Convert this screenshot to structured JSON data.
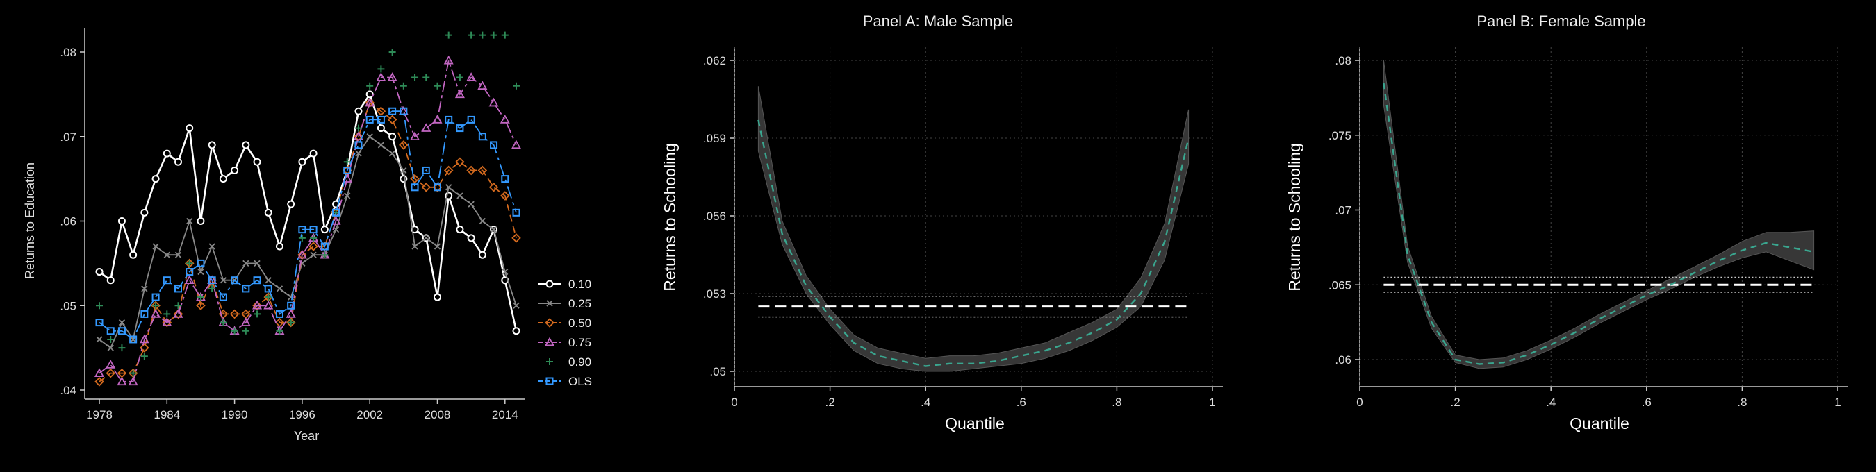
{
  "chart_data": [
    {
      "type": "line",
      "title": "",
      "xlabel": "Year",
      "ylabel": "Returns to Education",
      "xlim": [
        1978,
        2015
      ],
      "ylim": [
        0.04,
        0.08
      ],
      "xticks": [
        "1978",
        "1984",
        "1990",
        "1996",
        "2002",
        "2008",
        "2014"
      ],
      "yticks": [
        ".04",
        ".05",
        ".06",
        ".07",
        ".08"
      ],
      "grid": false,
      "legend_position": "right",
      "x": [
        1978,
        1979,
        1980,
        1981,
        1982,
        1983,
        1984,
        1985,
        1986,
        1987,
        1988,
        1989,
        1990,
        1991,
        1992,
        1993,
        1994,
        1995,
        1996,
        1997,
        1998,
        1999,
        2000,
        2001,
        2002,
        2003,
        2004,
        2005,
        2006,
        2007,
        2008,
        2009,
        2010,
        2011,
        2012,
        2013,
        2014,
        2015
      ],
      "series": [
        {
          "name": "0.10",
          "color": "#ffffff",
          "marker": "circle",
          "values": [
            0.054,
            0.053,
            0.06,
            0.056,
            0.061,
            0.065,
            0.068,
            0.067,
            0.071,
            0.06,
            0.069,
            0.065,
            0.066,
            0.069,
            0.067,
            0.061,
            0.057,
            0.062,
            0.067,
            0.068,
            0.059,
            0.062,
            0.066,
            0.073,
            0.075,
            0.071,
            0.07,
            0.065,
            0.059,
            0.058,
            0.051,
            0.063,
            0.059,
            0.058,
            0.056,
            0.059,
            0.053,
            0.047
          ]
        },
        {
          "name": "0.25",
          "color": "#888888",
          "marker": "x",
          "values": [
            0.046,
            0.045,
            0.048,
            0.046,
            0.052,
            0.057,
            0.056,
            0.056,
            0.06,
            0.054,
            0.057,
            0.053,
            0.053,
            0.055,
            0.055,
            0.053,
            0.052,
            0.051,
            0.055,
            0.056,
            0.056,
            0.059,
            0.063,
            0.068,
            0.07,
            0.069,
            0.068,
            0.066,
            0.057,
            0.058,
            0.057,
            0.064,
            0.063,
            0.062,
            0.06,
            0.059,
            0.054,
            0.05
          ]
        },
        {
          "name": "0.50",
          "color": "#d2691e",
          "marker": "diamond",
          "values": [
            0.041,
            0.042,
            0.042,
            0.042,
            0.045,
            0.05,
            0.048,
            0.049,
            0.055,
            0.05,
            0.053,
            0.049,
            0.049,
            0.049,
            0.05,
            0.051,
            0.048,
            0.048,
            0.056,
            0.057,
            0.057,
            0.061,
            0.066,
            0.07,
            0.074,
            0.073,
            0.072,
            0.069,
            0.065,
            0.064,
            0.064,
            0.066,
            0.067,
            0.066,
            0.066,
            0.064,
            0.063,
            0.058
          ]
        },
        {
          "name": "0.75",
          "color": "#c266c2",
          "marker": "triangle",
          "values": [
            0.042,
            0.043,
            0.041,
            0.041,
            0.046,
            0.049,
            0.048,
            0.049,
            0.053,
            0.051,
            0.053,
            0.048,
            0.047,
            0.048,
            0.05,
            0.05,
            0.047,
            0.049,
            0.056,
            0.058,
            0.056,
            0.06,
            0.065,
            0.07,
            0.074,
            0.077,
            0.077,
            0.073,
            0.07,
            0.071,
            0.072,
            0.079,
            0.075,
            0.077,
            0.076,
            0.074,
            0.072,
            0.069
          ]
        },
        {
          "name": "0.90",
          "color": "#2e8b57",
          "marker": "plus",
          "values": [
            0.05,
            0.046,
            0.045,
            0.042,
            0.044,
            0.05,
            0.049,
            0.05,
            0.055,
            0.051,
            0.052,
            0.048,
            0.047,
            0.047,
            0.049,
            0.051,
            0.047,
            0.048,
            0.058,
            0.058,
            0.056,
            0.061,
            0.067,
            0.071,
            0.076,
            0.078,
            0.08,
            0.076,
            0.077,
            0.077,
            0.076,
            0.082,
            0.077,
            0.082,
            0.082,
            0.082,
            0.082,
            0.076
          ]
        },
        {
          "name": "OLS",
          "color": "#3399ff",
          "marker": "square",
          "values": [
            0.048,
            0.047,
            0.047,
            0.046,
            0.049,
            0.051,
            0.053,
            0.052,
            0.054,
            0.055,
            0.053,
            0.051,
            0.053,
            0.052,
            0.053,
            0.052,
            0.049,
            0.05,
            0.059,
            0.059,
            0.057,
            0.061,
            0.066,
            0.069,
            0.072,
            0.072,
            0.073,
            0.073,
            0.064,
            0.066,
            0.064,
            0.072,
            0.071,
            0.072,
            0.07,
            0.069,
            0.065,
            0.061
          ]
        }
      ]
    },
    {
      "type": "line",
      "title": "Panel A: Male Sample",
      "xlabel": "Quantile",
      "ylabel": "Returns to Schooling",
      "xlim": [
        0,
        1
      ],
      "ylim": [
        0.05,
        0.062
      ],
      "xticks": [
        "0",
        ".2",
        ".4",
        ".6",
        ".8",
        "1"
      ],
      "yticks": [
        ".05",
        ".053",
        ".056",
        ".059",
        ".062"
      ],
      "grid": true,
      "x": [
        0.05,
        0.1,
        0.15,
        0.2,
        0.25,
        0.3,
        0.35,
        0.4,
        0.45,
        0.5,
        0.55,
        0.6,
        0.65,
        0.7,
        0.75,
        0.8,
        0.85,
        0.9,
        0.95
      ],
      "estimate": [
        0.0597,
        0.0553,
        0.0533,
        0.0521,
        0.0511,
        0.0506,
        0.0504,
        0.0502,
        0.0503,
        0.0503,
        0.0504,
        0.0506,
        0.0508,
        0.0511,
        0.0515,
        0.052,
        0.053,
        0.055,
        0.059
      ],
      "ci_lower": [
        0.0585,
        0.0549,
        0.053,
        0.0518,
        0.0508,
        0.0503,
        0.0501,
        0.05,
        0.05,
        0.0501,
        0.0502,
        0.0503,
        0.0505,
        0.0508,
        0.0512,
        0.0517,
        0.0525,
        0.0543,
        0.058
      ],
      "ci_upper": [
        0.061,
        0.0558,
        0.0537,
        0.0524,
        0.0514,
        0.0509,
        0.0507,
        0.0505,
        0.0506,
        0.0506,
        0.0507,
        0.0509,
        0.0511,
        0.0515,
        0.0519,
        0.0524,
        0.0536,
        0.0557,
        0.0601
      ],
      "ols": 0.0525,
      "ols_ci": [
        0.0521,
        0.0529
      ]
    },
    {
      "type": "line",
      "title": "Panel B: Female Sample",
      "xlabel": "Quantile",
      "ylabel": "Returns to Schooling",
      "xlim": [
        0,
        1
      ],
      "ylim": [
        0.06,
        0.08
      ],
      "xticks": [
        "0",
        ".2",
        ".4",
        ".6",
        ".8",
        "1"
      ],
      "yticks": [
        ".06",
        ".065",
        ".07",
        ".075",
        ".08"
      ],
      "grid": true,
      "x": [
        0.05,
        0.1,
        0.15,
        0.2,
        0.25,
        0.3,
        0.35,
        0.4,
        0.45,
        0.5,
        0.55,
        0.6,
        0.65,
        0.7,
        0.75,
        0.8,
        0.85,
        0.9,
        0.95
      ],
      "estimate": [
        0.0785,
        0.067,
        0.0625,
        0.06,
        0.0597,
        0.0598,
        0.0603,
        0.061,
        0.0618,
        0.0627,
        0.0635,
        0.0643,
        0.065,
        0.0658,
        0.0666,
        0.0673,
        0.0678,
        0.0675,
        0.0672
      ],
      "ci_lower": [
        0.077,
        0.0665,
        0.0621,
        0.0598,
        0.0594,
        0.0595,
        0.06,
        0.0607,
        0.0615,
        0.0624,
        0.0632,
        0.064,
        0.0647,
        0.0655,
        0.0662,
        0.0668,
        0.0672,
        0.0666,
        0.066
      ],
      "ci_upper": [
        0.08,
        0.0676,
        0.0629,
        0.0603,
        0.06,
        0.0601,
        0.0606,
        0.0613,
        0.0621,
        0.063,
        0.0638,
        0.0646,
        0.0654,
        0.0662,
        0.067,
        0.0679,
        0.0685,
        0.0685,
        0.0686
      ],
      "ols": 0.065,
      "ols_ci": [
        0.0645,
        0.0655
      ]
    }
  ]
}
